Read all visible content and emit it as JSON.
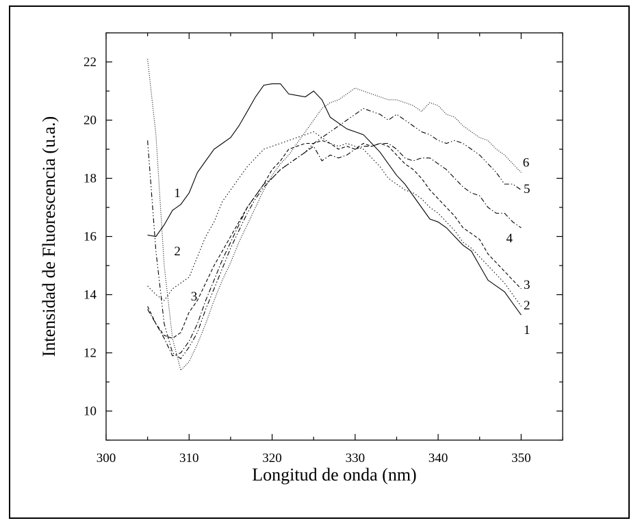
{
  "chart_data": {
    "type": "line",
    "title": "",
    "xlabel": "Longitud de onda (nm)",
    "ylabel": "Intensidad de Fluorescencia (u.a.)",
    "xlim": [
      300,
      355
    ],
    "ylim": [
      9,
      23
    ],
    "xticks": [
      300,
      310,
      320,
      330,
      340,
      350
    ],
    "yticks": [
      10,
      12,
      14,
      16,
      18,
      20,
      22
    ],
    "grid": false,
    "legend": "none",
    "series": [
      {
        "label": "1",
        "dash": "",
        "points": [
          [
            305,
            16.05
          ],
          [
            306,
            16.0
          ],
          [
            307,
            16.4
          ],
          [
            308,
            16.9
          ],
          [
            309,
            17.1
          ],
          [
            310,
            17.5
          ],
          [
            311,
            18.2
          ],
          [
            312,
            18.6
          ],
          [
            313,
            19.0
          ],
          [
            314,
            19.2
          ],
          [
            315,
            19.4
          ],
          [
            316,
            19.8
          ],
          [
            317,
            20.3
          ],
          [
            318,
            20.8
          ],
          [
            319,
            21.2
          ],
          [
            320,
            21.25
          ],
          [
            321,
            21.25
          ],
          [
            322,
            20.9
          ],
          [
            323,
            20.85
          ],
          [
            324,
            20.8
          ],
          [
            325,
            21.0
          ],
          [
            326,
            20.7
          ],
          [
            327,
            20.1
          ],
          [
            328,
            19.9
          ],
          [
            329,
            19.7
          ],
          [
            330,
            19.6
          ],
          [
            331,
            19.5
          ],
          [
            332,
            19.2
          ],
          [
            333,
            18.9
          ],
          [
            334,
            18.5
          ],
          [
            335,
            18.1
          ],
          [
            336,
            17.8
          ],
          [
            337,
            17.4
          ],
          [
            338,
            17.0
          ],
          [
            339,
            16.6
          ],
          [
            340,
            16.5
          ],
          [
            341,
            16.3
          ],
          [
            342,
            16.0
          ],
          [
            343,
            15.7
          ],
          [
            344,
            15.5
          ],
          [
            345,
            15.0
          ],
          [
            346,
            14.5
          ],
          [
            347,
            14.3
          ],
          [
            348,
            14.1
          ],
          [
            349,
            13.7
          ],
          [
            350,
            13.3
          ]
        ]
      },
      {
        "label": "2",
        "dash": "1.5 3",
        "points": [
          [
            305,
            14.3
          ],
          [
            306,
            14.0
          ],
          [
            307,
            13.8
          ],
          [
            308,
            14.2
          ],
          [
            309,
            14.4
          ],
          [
            310,
            14.6
          ],
          [
            311,
            15.3
          ],
          [
            312,
            16.0
          ],
          [
            313,
            16.5
          ],
          [
            314,
            17.2
          ],
          [
            315,
            17.6
          ],
          [
            316,
            18.0
          ],
          [
            317,
            18.4
          ],
          [
            318,
            18.7
          ],
          [
            319,
            19.0
          ],
          [
            320,
            19.1
          ],
          [
            321,
            19.2
          ],
          [
            322,
            19.3
          ],
          [
            323,
            19.4
          ],
          [
            324,
            19.5
          ],
          [
            325,
            19.6
          ],
          [
            326,
            19.4
          ],
          [
            327,
            19.2
          ],
          [
            328,
            19.1
          ],
          [
            329,
            19.2
          ],
          [
            330,
            19.1
          ],
          [
            331,
            19.0
          ],
          [
            332,
            18.7
          ],
          [
            333,
            18.4
          ],
          [
            334,
            18.0
          ],
          [
            335,
            17.8
          ],
          [
            336,
            17.6
          ],
          [
            337,
            17.5
          ],
          [
            338,
            17.3
          ],
          [
            339,
            17.0
          ],
          [
            340,
            16.8
          ],
          [
            341,
            16.5
          ],
          [
            342,
            16.2
          ],
          [
            343,
            15.8
          ],
          [
            344,
            15.6
          ],
          [
            345,
            15.3
          ],
          [
            346,
            15.0
          ],
          [
            347,
            14.7
          ],
          [
            348,
            14.4
          ],
          [
            349,
            14.0
          ],
          [
            350,
            13.6
          ]
        ]
      },
      {
        "label": "3",
        "dash": "5 3",
        "points": [
          [
            305,
            13.6
          ],
          [
            306,
            13.0
          ],
          [
            307,
            12.6
          ],
          [
            308,
            12.5
          ],
          [
            309,
            12.7
          ],
          [
            310,
            13.4
          ],
          [
            311,
            13.8
          ],
          [
            312,
            14.4
          ],
          [
            313,
            15.0
          ],
          [
            314,
            15.5
          ],
          [
            315,
            16.0
          ],
          [
            316,
            16.5
          ],
          [
            317,
            17.0
          ],
          [
            318,
            17.4
          ],
          [
            319,
            17.8
          ],
          [
            320,
            18.3
          ],
          [
            321,
            18.6
          ],
          [
            322,
            19.0
          ],
          [
            323,
            19.1
          ],
          [
            324,
            19.2
          ],
          [
            325,
            19.2
          ],
          [
            326,
            19.3
          ],
          [
            327,
            19.2
          ],
          [
            328,
            19.0
          ],
          [
            329,
            19.1
          ],
          [
            330,
            19.0
          ],
          [
            331,
            19.2
          ],
          [
            332,
            19.1
          ],
          [
            333,
            19.2
          ],
          [
            334,
            19.1
          ],
          [
            335,
            18.8
          ],
          [
            336,
            18.5
          ],
          [
            337,
            18.3
          ],
          [
            338,
            18.0
          ],
          [
            339,
            17.6
          ],
          [
            340,
            17.3
          ],
          [
            341,
            17.0
          ],
          [
            342,
            16.7
          ],
          [
            343,
            16.3
          ],
          [
            344,
            16.1
          ],
          [
            345,
            15.9
          ],
          [
            346,
            15.4
          ],
          [
            347,
            15.1
          ],
          [
            348,
            14.8
          ],
          [
            349,
            14.5
          ],
          [
            350,
            14.2
          ]
        ]
      },
      {
        "label": "4",
        "dash": "7 3 1.5 3",
        "points": [
          [
            305,
            13.5
          ],
          [
            306,
            13.0
          ],
          [
            307,
            12.5
          ],
          [
            308,
            11.9
          ],
          [
            309,
            12.0
          ],
          [
            310,
            12.4
          ],
          [
            311,
            13.0
          ],
          [
            312,
            13.8
          ],
          [
            313,
            14.5
          ],
          [
            314,
            15.2
          ],
          [
            315,
            15.8
          ],
          [
            316,
            16.4
          ],
          [
            317,
            17.0
          ],
          [
            318,
            17.4
          ],
          [
            319,
            17.8
          ],
          [
            320,
            18.0
          ],
          [
            321,
            18.3
          ],
          [
            322,
            18.5
          ],
          [
            323,
            18.7
          ],
          [
            324,
            18.9
          ],
          [
            325,
            19.1
          ],
          [
            326,
            18.6
          ],
          [
            327,
            18.8
          ],
          [
            328,
            18.7
          ],
          [
            329,
            18.8
          ],
          [
            330,
            19.0
          ],
          [
            331,
            19.1
          ],
          [
            332,
            19.1
          ],
          [
            333,
            19.2
          ],
          [
            334,
            19.2
          ],
          [
            335,
            19.0
          ],
          [
            336,
            18.7
          ],
          [
            337,
            18.6
          ],
          [
            338,
            18.7
          ],
          [
            339,
            18.7
          ],
          [
            340,
            18.5
          ],
          [
            341,
            18.3
          ],
          [
            342,
            18.0
          ],
          [
            343,
            17.7
          ],
          [
            344,
            17.5
          ],
          [
            345,
            17.4
          ],
          [
            346,
            17.0
          ],
          [
            347,
            16.8
          ],
          [
            348,
            16.8
          ],
          [
            349,
            16.5
          ],
          [
            350,
            16.3
          ]
        ]
      },
      {
        "label": "5",
        "dash": "7 3 1.5 3 1.5 3",
        "points": [
          [
            305,
            19.3
          ],
          [
            306,
            15.5
          ],
          [
            307,
            13.0
          ],
          [
            308,
            12.0
          ],
          [
            309,
            11.8
          ],
          [
            310,
            12.2
          ],
          [
            311,
            12.7
          ],
          [
            312,
            13.5
          ],
          [
            313,
            14.2
          ],
          [
            314,
            14.9
          ],
          [
            315,
            15.6
          ],
          [
            316,
            16.2
          ],
          [
            317,
            16.8
          ],
          [
            318,
            17.3
          ],
          [
            319,
            17.7
          ],
          [
            320,
            18.0
          ],
          [
            321,
            18.3
          ],
          [
            322,
            18.5
          ],
          [
            323,
            18.7
          ],
          [
            324,
            18.9
          ],
          [
            325,
            19.2
          ],
          [
            326,
            19.4
          ],
          [
            327,
            19.6
          ],
          [
            328,
            19.8
          ],
          [
            329,
            20.0
          ],
          [
            330,
            20.2
          ],
          [
            331,
            20.4
          ],
          [
            332,
            20.3
          ],
          [
            333,
            20.2
          ],
          [
            334,
            20.0
          ],
          [
            335,
            20.2
          ],
          [
            336,
            20.0
          ],
          [
            337,
            19.8
          ],
          [
            338,
            19.6
          ],
          [
            339,
            19.5
          ],
          [
            340,
            19.3
          ],
          [
            341,
            19.2
          ],
          [
            342,
            19.3
          ],
          [
            343,
            19.2
          ],
          [
            344,
            19.0
          ],
          [
            345,
            18.8
          ],
          [
            346,
            18.5
          ],
          [
            347,
            18.2
          ],
          [
            348,
            17.8
          ],
          [
            349,
            17.8
          ],
          [
            350,
            17.6
          ]
        ]
      },
      {
        "label": "6",
        "dash": "1 2",
        "points": [
          [
            305,
            22.1
          ],
          [
            306,
            19.5
          ],
          [
            307,
            15.0
          ],
          [
            308,
            12.5
          ],
          [
            309,
            11.4
          ],
          [
            310,
            11.7
          ],
          [
            311,
            12.3
          ],
          [
            312,
            13.0
          ],
          [
            313,
            13.8
          ],
          [
            314,
            14.5
          ],
          [
            315,
            15.1
          ],
          [
            316,
            15.8
          ],
          [
            317,
            16.4
          ],
          [
            318,
            17.0
          ],
          [
            319,
            17.6
          ],
          [
            320,
            18.1
          ],
          [
            321,
            18.5
          ],
          [
            322,
            18.8
          ],
          [
            323,
            19.2
          ],
          [
            324,
            19.6
          ],
          [
            325,
            20.0
          ],
          [
            326,
            20.4
          ],
          [
            327,
            20.6
          ],
          [
            328,
            20.7
          ],
          [
            329,
            20.9
          ],
          [
            330,
            21.1
          ],
          [
            331,
            21.0
          ],
          [
            332,
            20.9
          ],
          [
            333,
            20.8
          ],
          [
            334,
            20.7
          ],
          [
            335,
            20.7
          ],
          [
            336,
            20.6
          ],
          [
            337,
            20.5
          ],
          [
            338,
            20.3
          ],
          [
            339,
            20.6
          ],
          [
            340,
            20.5
          ],
          [
            341,
            20.2
          ],
          [
            342,
            20.1
          ],
          [
            343,
            19.8
          ],
          [
            344,
            19.6
          ],
          [
            345,
            19.4
          ],
          [
            346,
            19.3
          ],
          [
            347,
            19.0
          ],
          [
            348,
            18.8
          ],
          [
            349,
            18.5
          ],
          [
            350,
            18.2
          ]
        ]
      }
    ],
    "curve_labels": [
      {
        "text": "1",
        "x": 308.2,
        "y": 17.35
      },
      {
        "text": "2",
        "x": 308.2,
        "y": 15.35
      },
      {
        "text": "3",
        "x": 310.2,
        "y": 13.8
      },
      {
        "text": "6",
        "x": 350.2,
        "y": 18.4
      },
      {
        "text": "5",
        "x": 350.3,
        "y": 17.5
      },
      {
        "text": "4",
        "x": 348.2,
        "y": 15.8
      },
      {
        "text": "3",
        "x": 350.3,
        "y": 14.2
      },
      {
        "text": "2",
        "x": 350.3,
        "y": 13.5
      },
      {
        "text": "1",
        "x": 350.3,
        "y": 12.65
      }
    ]
  }
}
